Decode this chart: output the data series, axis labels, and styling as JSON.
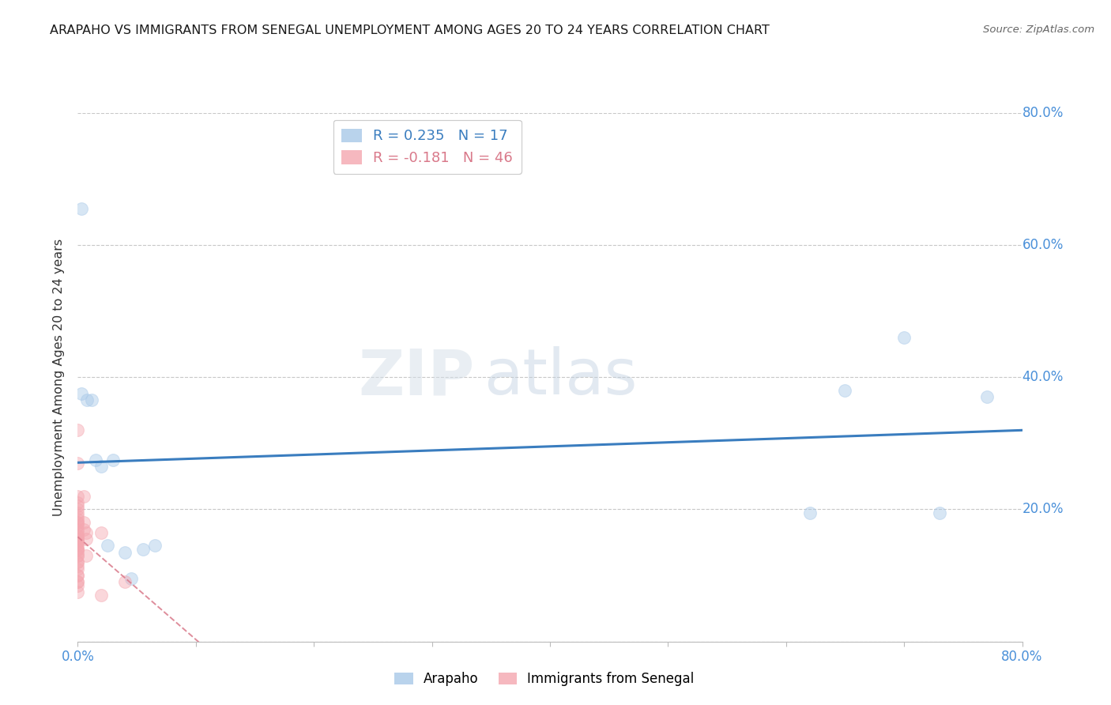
{
  "title": "ARAPAHO VS IMMIGRANTS FROM SENEGAL UNEMPLOYMENT AMONG AGES 20 TO 24 YEARS CORRELATION CHART",
  "source": "Source: ZipAtlas.com",
  "ylabel": "Unemployment Among Ages 20 to 24 years",
  "xlim": [
    0.0,
    0.8
  ],
  "ylim": [
    0.0,
    0.8
  ],
  "arapaho_color": "#a8c8e8",
  "senegal_color": "#f4a7b0",
  "trendline_arapaho_color": "#3a7dbf",
  "trendline_senegal_color": "#d9798a",
  "watermark_zip": "ZIP",
  "watermark_atlas": "atlas",
  "legend_R_arapaho": "R = 0.235",
  "legend_N_arapaho": "N = 17",
  "legend_R_senegal": "R = -0.181",
  "legend_N_senegal": "N = 46",
  "arapaho_x": [
    0.003,
    0.003,
    0.008,
    0.012,
    0.015,
    0.02,
    0.025,
    0.03,
    0.04,
    0.045,
    0.055,
    0.065,
    0.62,
    0.65,
    0.7,
    0.73,
    0.77
  ],
  "arapaho_y": [
    0.655,
    0.375,
    0.365,
    0.365,
    0.275,
    0.265,
    0.145,
    0.275,
    0.135,
    0.095,
    0.14,
    0.145,
    0.195,
    0.38,
    0.46,
    0.195,
    0.37
  ],
  "senegal_x": [
    0.0,
    0.0,
    0.0,
    0.0,
    0.0,
    0.0,
    0.0,
    0.0,
    0.0,
    0.0,
    0.0,
    0.0,
    0.0,
    0.0,
    0.0,
    0.0,
    0.0,
    0.0,
    0.0,
    0.0,
    0.0,
    0.0,
    0.0,
    0.0,
    0.0,
    0.0,
    0.0,
    0.0,
    0.0,
    0.0,
    0.0,
    0.0,
    0.0,
    0.0,
    0.0,
    0.0,
    0.0,
    0.005,
    0.005,
    0.005,
    0.007,
    0.007,
    0.007,
    0.02,
    0.04,
    0.02
  ],
  "senegal_y": [
    0.32,
    0.27,
    0.22,
    0.21,
    0.205,
    0.2,
    0.195,
    0.19,
    0.185,
    0.18,
    0.18,
    0.175,
    0.17,
    0.165,
    0.16,
    0.16,
    0.155,
    0.155,
    0.15,
    0.15,
    0.145,
    0.14,
    0.14,
    0.14,
    0.135,
    0.13,
    0.13,
    0.12,
    0.12,
    0.115,
    0.11,
    0.1,
    0.1,
    0.09,
    0.09,
    0.085,
    0.075,
    0.22,
    0.18,
    0.17,
    0.165,
    0.155,
    0.13,
    0.165,
    0.09,
    0.07
  ],
  "grid_color": "#c8c8c8",
  "bg_color": "#ffffff",
  "dot_size": 130,
  "dot_alpha": 0.45,
  "tick_color": "#4a90d9",
  "axis_label_color": "#333333"
}
